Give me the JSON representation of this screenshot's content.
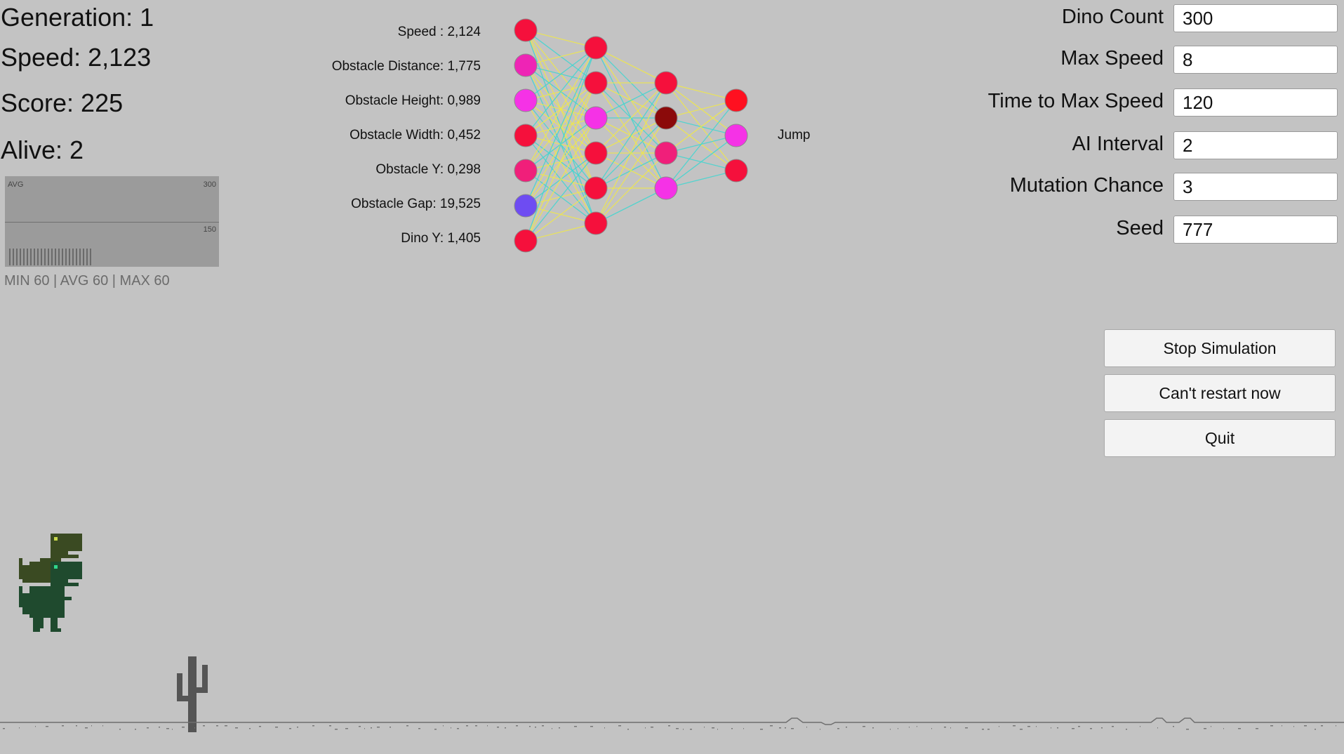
{
  "stats": {
    "generation": "Generation: 1",
    "speed": "Speed: 2,123",
    "score": "Score: 225",
    "alive": "Alive: 2"
  },
  "graph": {
    "avg_label": "AVG",
    "max_tick": "300",
    "mid_tick": "150",
    "summary": "MIN 60 | AVG 60 | MAX 60"
  },
  "network": {
    "inputs": [
      "Speed : 2,124",
      "Obstacle Distance: 1,775",
      "Obstacle Height: 0,989",
      "Obstacle Width: 0,452",
      "Obstacle Y: 0,298",
      "Obstacle Gap: 19,525",
      "Dino Y: 1,405"
    ],
    "output": "Jump",
    "layers": [
      [
        "#f5103c",
        "#ee24b5",
        "#f532e6",
        "#f5103c",
        "#f01f7a",
        "#6e4cf2",
        "#f5103c"
      ],
      [
        "#f5103c",
        "#f5103c",
        "#f532e6",
        "#f5103c",
        "#f5103c",
        "#f5103c"
      ],
      [
        "#f5103c",
        "#8b0a0a",
        "#f01f7a",
        "#f532e6"
      ],
      [
        "#ff1020",
        "#f532e6",
        "#f5103c"
      ]
    ]
  },
  "settings": [
    {
      "label": "Dino Count",
      "value": "300"
    },
    {
      "label": "Max Speed",
      "value": "8"
    },
    {
      "label": "Time to Max Speed",
      "value": "120"
    },
    {
      "label": "AI Interval",
      "value": "2"
    },
    {
      "label": "Mutation Chance",
      "value": "3"
    },
    {
      "label": "Seed",
      "value": "777"
    }
  ],
  "buttons": {
    "stop": "Stop Simulation",
    "restart": "Can't restart now",
    "quit": "Quit"
  },
  "colors": {
    "background": "#c3c3c3",
    "dino_dark": "#3a4a22",
    "dino_green": "#1f4a2e",
    "cactus": "#555555",
    "weight_positive": "#f0e84a",
    "weight_negative": "#3fd6d0"
  }
}
